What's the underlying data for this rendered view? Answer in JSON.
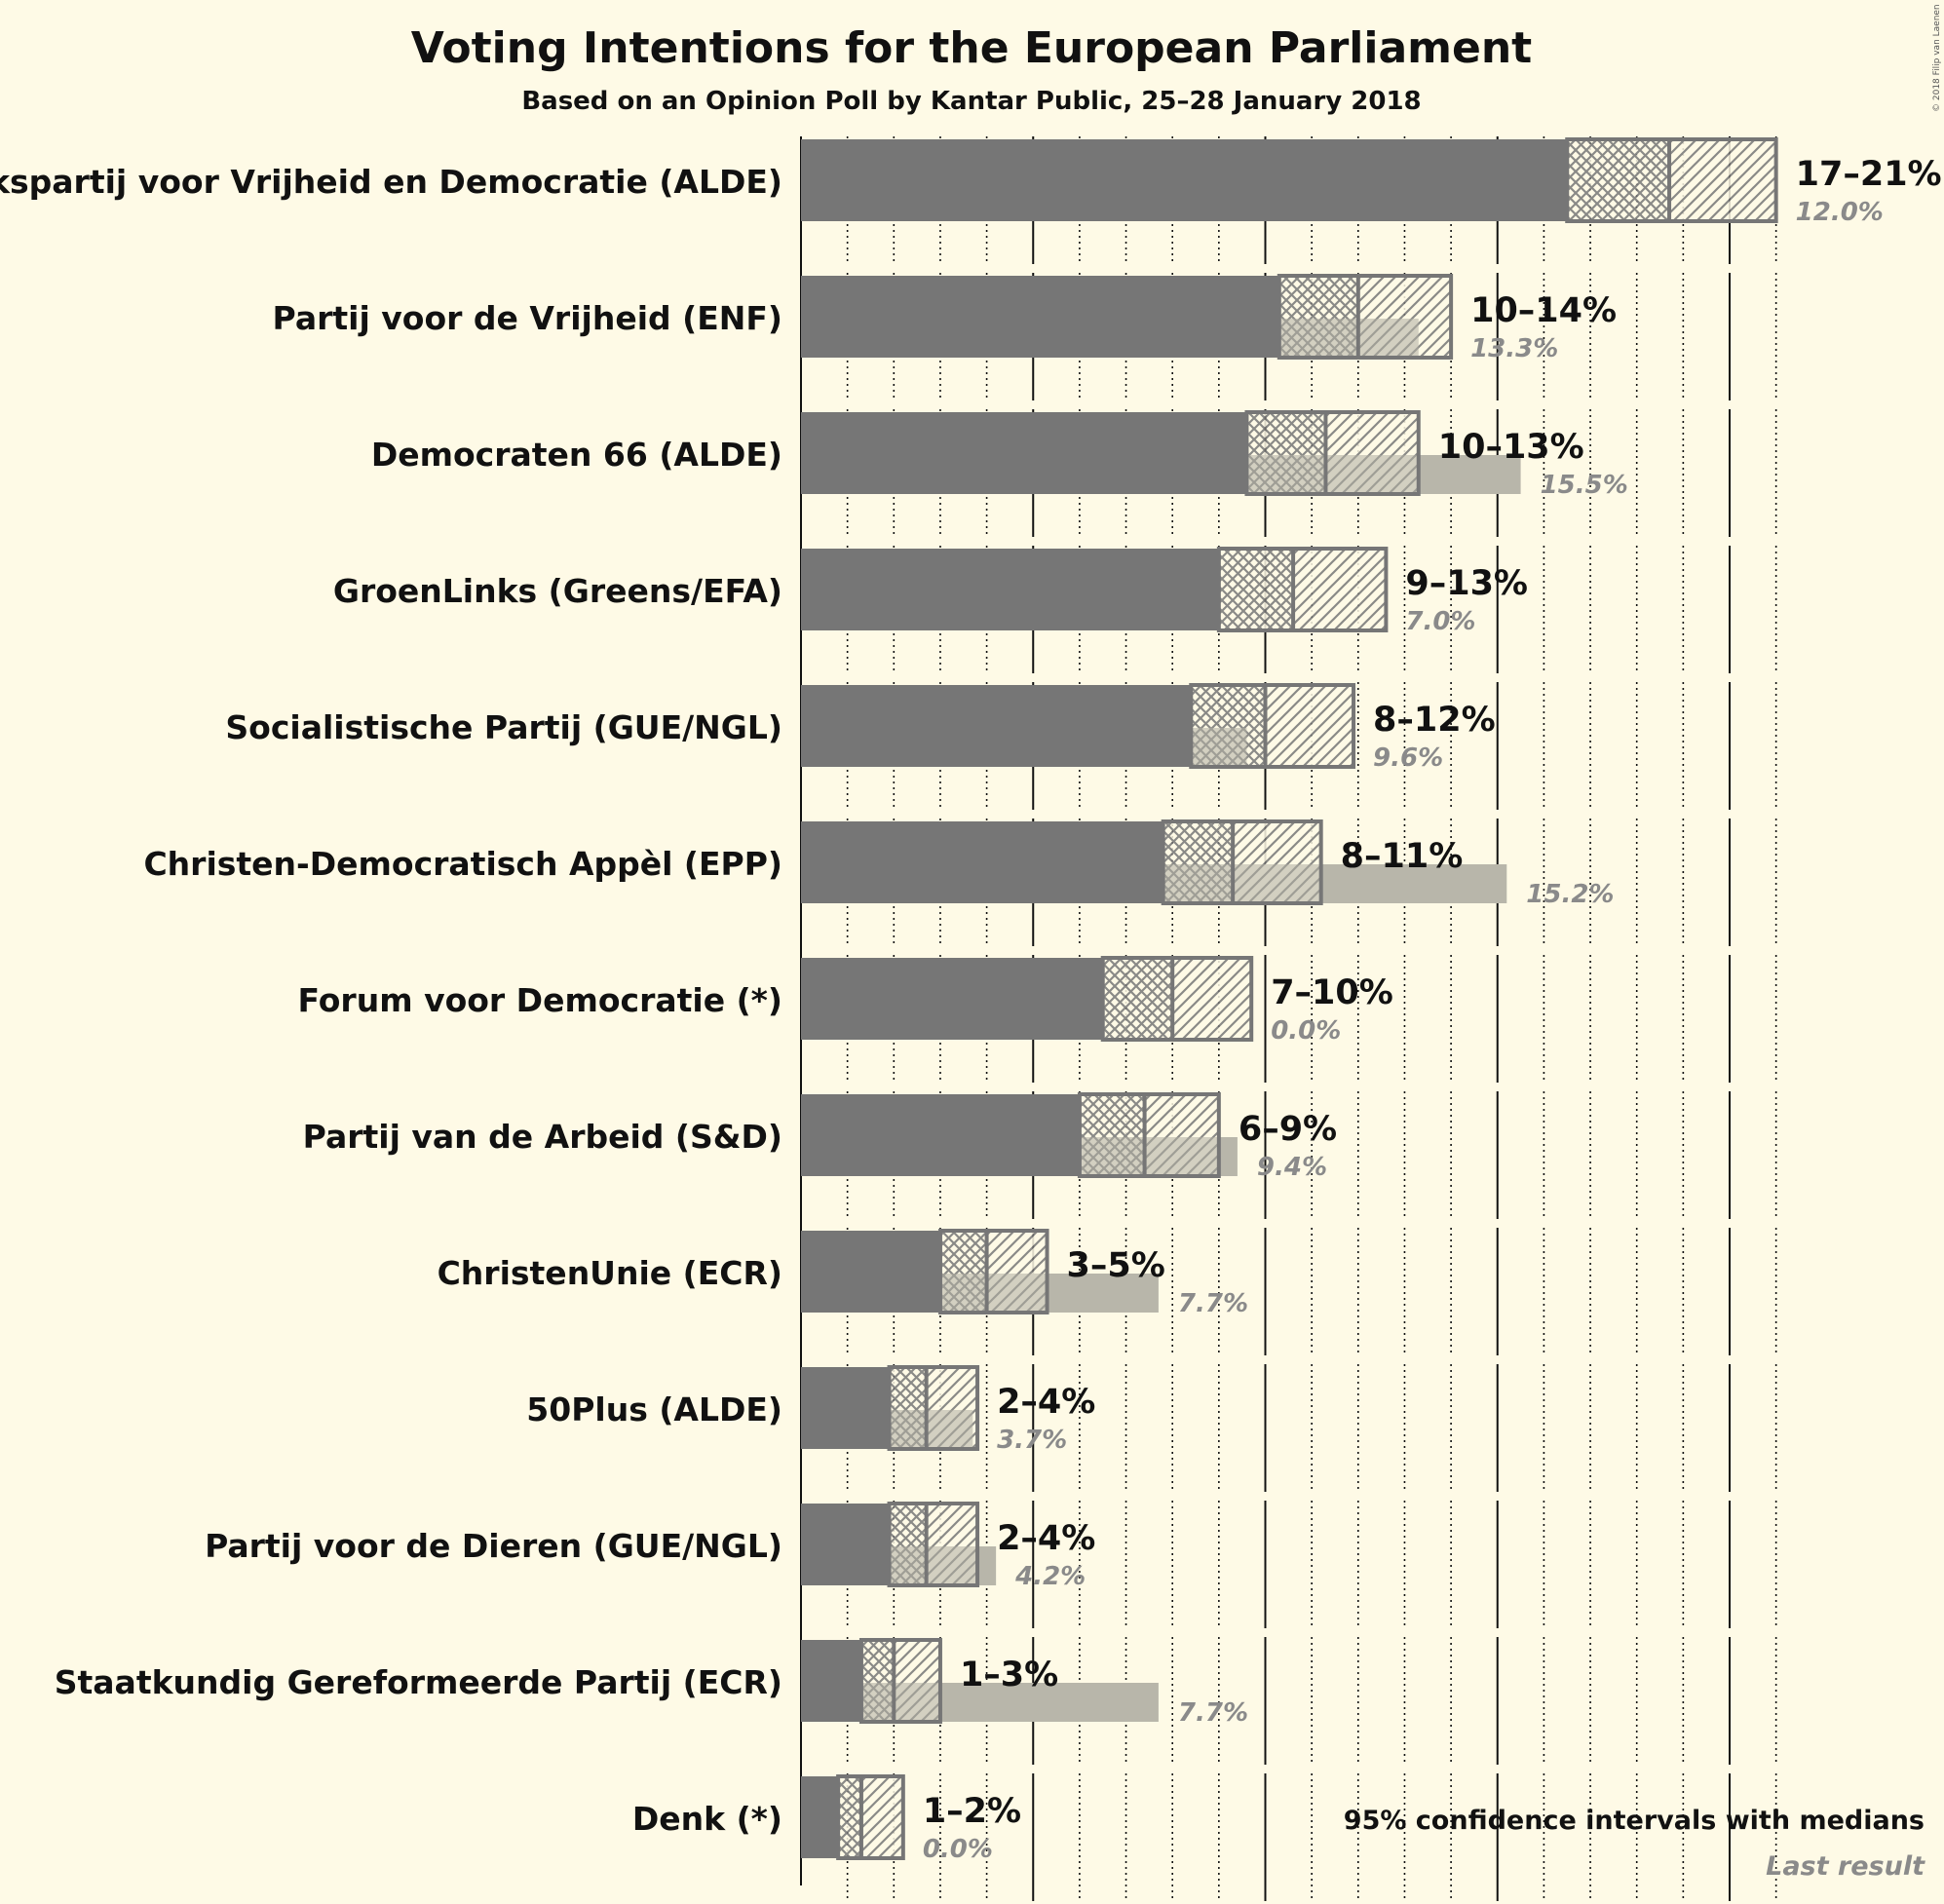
{
  "title": "Voting Intentions for the European Parliament",
  "subtitle": "Based on an Opinion Poll by Kantar Public, 25–28 January 2018",
  "copyright": "© 2018 Filip van Laenen",
  "legend": {
    "ci_text": "95% confidence intervals with medians",
    "last_text": "Last result"
  },
  "colors": {
    "background": "#fefae6",
    "bar": "#767676",
    "last_result": "#b8b6aa",
    "ci_border": "#767676"
  },
  "chart_data": {
    "type": "bar",
    "orientation": "horizontal",
    "unit": "%",
    "xlim": [
      0,
      21.5
    ],
    "grid": "dotted vertical every 1%, solid every 5%",
    "legend_position": "bottom-right",
    "parties": [
      {
        "name": "Volkspartij voor Vrijheid en Democratie (ALDE)",
        "low": 16.5,
        "median": 18.7,
        "high": 21.0,
        "last": 12.0,
        "range_label": "17–21%",
        "last_label": "12.0%"
      },
      {
        "name": "Partij voor de Vrijheid (ENF)",
        "low": 10.3,
        "median": 12.0,
        "high": 14.0,
        "last": 13.3,
        "range_label": "10–14%",
        "last_label": "13.3%"
      },
      {
        "name": "Democraten 66 (ALDE)",
        "low": 9.6,
        "median": 11.3,
        "high": 13.3,
        "last": 15.5,
        "range_label": "10–13%",
        "last_label": "15.5%"
      },
      {
        "name": "GroenLinks (Greens/EFA)",
        "low": 9.0,
        "median": 10.6,
        "high": 12.6,
        "last": 7.0,
        "range_label": "9–13%",
        "last_label": "7.0%"
      },
      {
        "name": "Socialistische Partij (GUE/NGL)",
        "low": 8.4,
        "median": 10.0,
        "high": 11.9,
        "last": 9.6,
        "range_label": "8–12%",
        "last_label": "9.6%"
      },
      {
        "name": "Christen-Democratisch Appèl (EPP)",
        "low": 7.8,
        "median": 9.3,
        "high": 11.2,
        "last": 15.2,
        "range_label": "8–11%",
        "last_label": "15.2%"
      },
      {
        "name": "Forum voor Democratie (*)",
        "low": 6.5,
        "median": 8.0,
        "high": 9.7,
        "last": 0.0,
        "range_label": "7–10%",
        "last_label": "0.0%"
      },
      {
        "name": "Partij van de Arbeid (S&D)",
        "low": 6.0,
        "median": 7.4,
        "high": 9.0,
        "last": 9.4,
        "range_label": "6–9%",
        "last_label": "9.4%"
      },
      {
        "name": "ChristenUnie (ECR)",
        "low": 3.0,
        "median": 4.0,
        "high": 5.3,
        "last": 7.7,
        "range_label": "3–5%",
        "last_label": "7.7%"
      },
      {
        "name": "50Plus (ALDE)",
        "low": 1.9,
        "median": 2.7,
        "high": 3.8,
        "last": 3.7,
        "range_label": "2–4%",
        "last_label": "3.7%"
      },
      {
        "name": "Partij voor de Dieren (GUE/NGL)",
        "low": 1.9,
        "median": 2.7,
        "high": 3.8,
        "last": 4.2,
        "range_label": "2–4%",
        "last_label": "4.2%"
      },
      {
        "name": "Staatkundig Gereformeerde Partij (ECR)",
        "low": 1.3,
        "median": 2.0,
        "high": 3.0,
        "last": 7.7,
        "range_label": "1–3%",
        "last_label": "7.7%"
      },
      {
        "name": "Denk (*)",
        "low": 0.8,
        "median": 1.3,
        "high": 2.2,
        "last": 0.0,
        "range_label": "1–2%",
        "last_label": "0.0%"
      }
    ]
  }
}
